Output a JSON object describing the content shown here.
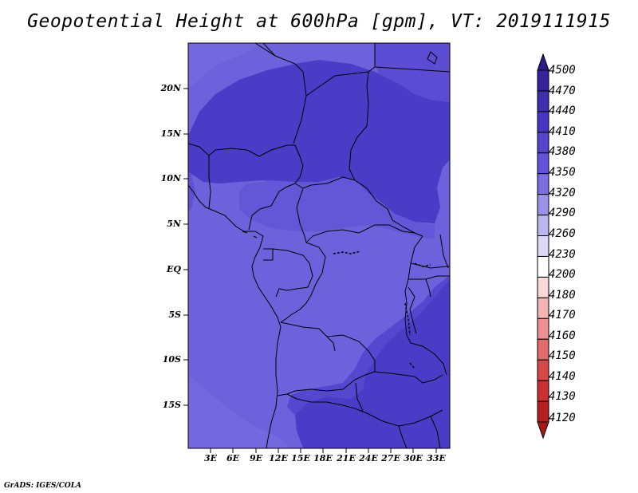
{
  "title": "Geopotential Height at 600hPa [gpm], VT: 2019111915",
  "credit": "GrADS: IGES/COLA",
  "lat_labels": [
    "20N",
    "15N",
    "10N",
    "5N",
    "EQ",
    "5S",
    "10S",
    "15S"
  ],
  "lon_labels": [
    "3E",
    "6E",
    "9E",
    "12E",
    "15E",
    "18E",
    "21E",
    "24E",
    "27E",
    "30E",
    "33E"
  ],
  "colorbar": {
    "labels": [
      "4500",
      "4470",
      "4440",
      "4410",
      "4380",
      "4350",
      "4320",
      "4290",
      "4260",
      "4230",
      "4200",
      "4180",
      "4170",
      "4160",
      "4150",
      "4140",
      "4130",
      "4120"
    ],
    "colors": [
      "#2a1a8c",
      "#35239e",
      "#3e2fb0",
      "#4737c0",
      "#5544cc",
      "#6353d8",
      "#7a6ee2",
      "#9a92ea",
      "#bcb6f0",
      "#dcd9f7",
      "#ffffff",
      "#fbd8d8",
      "#f4b4b4",
      "#ec9090",
      "#e26c6c",
      "#d84848",
      "#cc3030",
      "#b82020",
      "#a81818"
    ]
  },
  "map": {
    "fields": [
      {
        "level": "4410",
        "color": "#4a3cc6"
      },
      {
        "level": "4380",
        "color": "#5b4cd3"
      },
      {
        "level": "4350",
        "color": "#6e62dc"
      }
    ]
  }
}
